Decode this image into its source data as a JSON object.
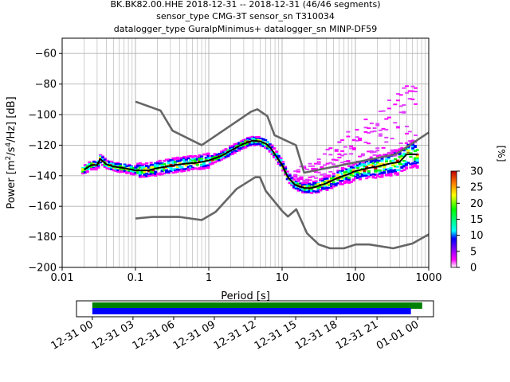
{
  "title": {
    "line1": "BK.BK82.00.HHE   2018-12-31 -- 2018-12-31  (46/46 segments)",
    "line2": "sensor_type CMG-3T sensor_sn T310034",
    "line3": "datalogger_type GuralpMinimus+ datalogger_sn MINP-DF59"
  },
  "colorbar": {
    "label": "[%]",
    "ticks": [
      0,
      5,
      10,
      15,
      20,
      25,
      30
    ],
    "range": [
      0,
      30
    ],
    "colors": [
      "#ffffff",
      "#ff00ff",
      "#0000ff",
      "#00ffff",
      "#00ff00",
      "#ffff00",
      "#ff8000",
      "#c00000"
    ]
  },
  "chart_data": [
    {
      "type": "line",
      "name": "ppsd",
      "xlabel": "Period [s]",
      "ylabel": "Power [m²/s⁴/Hz] [dB]",
      "xscale": "log",
      "xlim": [
        0.01,
        1000
      ],
      "ylim": [
        -200,
        -50
      ],
      "xticks": [
        0.01,
        0.1,
        1,
        10,
        100,
        1000
      ],
      "xtick_labels": [
        "0.01",
        "0.1",
        "1",
        "10",
        "100",
        "1000"
      ],
      "yticks": [
        -200,
        -180,
        -160,
        -140,
        -120,
        -100,
        -80,
        -60
      ],
      "grid": true,
      "series": [
        {
          "name": "",
          "color": "#666666",
          "x": [
            0.1,
            0.22,
            0.32,
            0.8,
            3.8,
            4.6,
            6.3,
            7.9,
            15.4,
            20,
            354.8,
            10000
          ],
          "y": [
            -91.5,
            -97.4,
            -110.5,
            -120,
            -98,
            -96.5,
            -101,
            -113.5,
            -120,
            -138,
            -126,
            -80
          ]
        },
        {
          "name": "",
          "color": "#666666",
          "x": [
            0.1,
            0.17,
            0.4,
            0.8,
            1.24,
            2.4,
            4.3,
            5,
            6,
            10,
            12,
            15.6,
            21.9,
            31.6,
            45,
            70,
            101,
            154,
            328,
            600,
            10000
          ],
          "y": [
            -168,
            -167,
            -167,
            -169,
            -163.7,
            -148.6,
            -141,
            -141,
            -150,
            -163,
            -166.7,
            -162,
            -177.7,
            -185,
            -187.5,
            -187.5,
            -185,
            -185,
            -187.5,
            -184.4,
            -151.5
          ]
        },
        {
          "name": "",
          "color": "#000000",
          "x": [
            0.02,
            0.025,
            0.03,
            0.033,
            0.04,
            0.05,
            0.07,
            0.1,
            0.15,
            0.2,
            0.3,
            0.5,
            0.7,
            1,
            1.5,
            2,
            3,
            4,
            5,
            6,
            7,
            8,
            10,
            12,
            15,
            20,
            25,
            30,
            40,
            60,
            80,
            100,
            150,
            200,
            300,
            400,
            500,
            700
          ],
          "y": [
            -136,
            -133,
            -133,
            -129,
            -132.5,
            -134,
            -135,
            -136.5,
            -136.5,
            -135,
            -133.5,
            -132,
            -131.5,
            -130,
            -127,
            -123.5,
            -119,
            -117,
            -117.5,
            -119,
            -122,
            -126,
            -133,
            -141,
            -146,
            -148,
            -148,
            -147,
            -145,
            -141,
            -139,
            -137,
            -135,
            -134,
            -132,
            -131,
            -126,
            -126
          ]
        }
      ]
    },
    {
      "type": "bar",
      "name": "data-availability",
      "xlim": [
        "2018-12-30 22:50",
        "2019-01-01 01:10"
      ],
      "xtick_labels": [
        "12-31 00",
        "12-31 03",
        "12-31 06",
        "12-31 09",
        "12-31 12",
        "12-31 15",
        "12-31 18",
        "12-31 21",
        "01-01 00"
      ],
      "series": [
        {
          "name": "",
          "color": "#008000",
          "start": "2018-12-31 00:00",
          "end": "2019-01-01 00:20"
        },
        {
          "name": "",
          "color": "#0000ff",
          "start": "2018-12-31 00:00",
          "end": "2018-12-31 23:30"
        }
      ]
    }
  ]
}
